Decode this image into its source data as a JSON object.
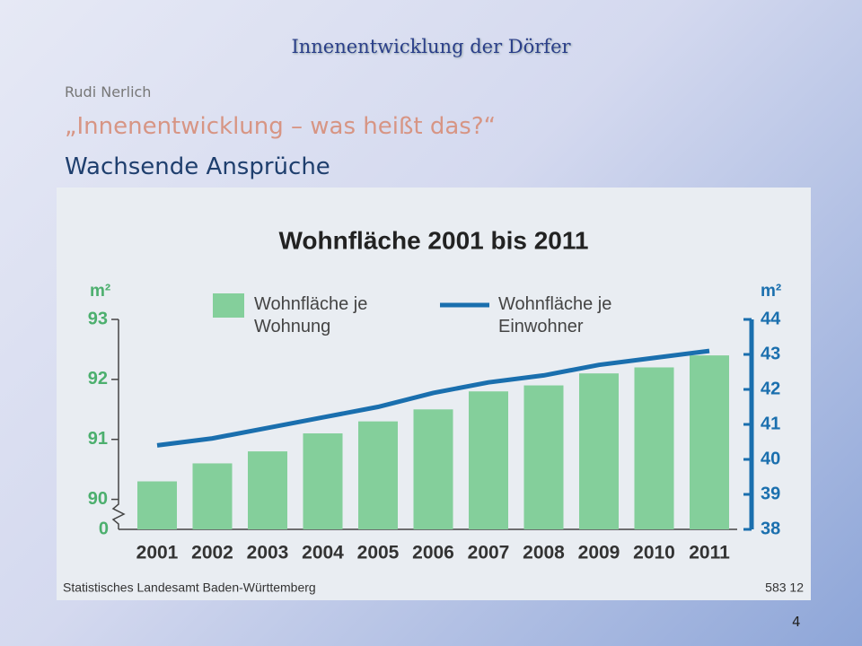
{
  "slide": {
    "header": "Innenentwicklung der Dörfer",
    "author": "Rudi Nerlich",
    "subtitle": "„Innenentwicklung – was heißt das?“",
    "heading": "Wachsende Ansprüche",
    "page_number": "4"
  },
  "chart_data": {
    "type": "combo",
    "title": "Wohnfläche 2001 bis 2011",
    "categories": [
      "2001",
      "2002",
      "2003",
      "2004",
      "2005",
      "2006",
      "2007",
      "2008",
      "2009",
      "2010",
      "2011"
    ],
    "series": [
      {
        "name": "Wohnfläche je Wohnung",
        "type": "bar",
        "color": "#84cf9b",
        "values": [
          90.3,
          90.6,
          90.8,
          91.1,
          91.3,
          91.5,
          91.8,
          91.9,
          92.1,
          92.2,
          92.4
        ]
      },
      {
        "name": "Wohnfläche je Einwohner",
        "type": "line",
        "axis": "y2",
        "color": "#1a6fae",
        "values": [
          40.4,
          40.6,
          40.9,
          41.2,
          41.5,
          41.9,
          42.2,
          42.4,
          42.7,
          42.9,
          43.1
        ]
      }
    ],
    "ylabel": "m²",
    "y2label": "m²",
    "axis_break_label": "0",
    "ylim": [
      89.5,
      93
    ],
    "yticks": [
      90,
      91,
      92,
      93
    ],
    "y2lim": [
      38,
      44
    ],
    "y2ticks": [
      38,
      39,
      40,
      41,
      42,
      43,
      44
    ],
    "y_color": "#4caf6e",
    "y2_color": "#1a6fae",
    "source": "Statistisches Landesamt Baden-Württemberg",
    "code": "583 12"
  }
}
